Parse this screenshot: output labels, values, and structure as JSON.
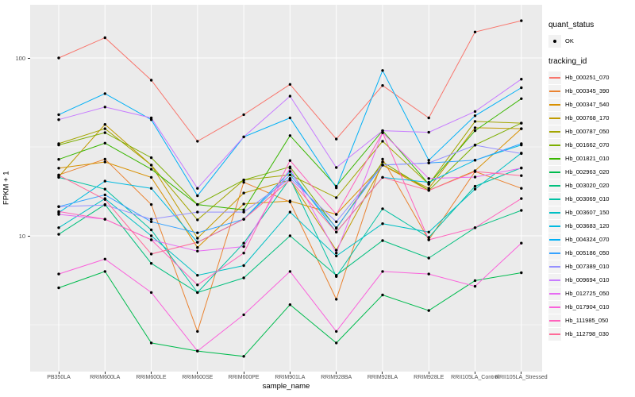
{
  "chart_data": {
    "type": "line",
    "xlabel": "sample_name",
    "ylabel": "FPKM + 1",
    "y_scale": "log10",
    "grid": "on",
    "legend_position": "right",
    "panel_bg": "#EBEBEB",
    "gridline_color": "#FFFFFF",
    "point_color": "#000000",
    "y_ticks": [
      {
        "value": 100,
        "label": "100"
      },
      {
        "value": 10,
        "label": "10"
      }
    ],
    "y_minor_gridlines": [
      3.162,
      31.62,
      316.2
    ],
    "ylim_log": [
      2.05,
      200
    ],
    "categories": [
      "PB350LA",
      "RRIM600LA",
      "RRIM600LE",
      "RRIM600SE",
      "RRIM600PE",
      "RRIM901LA",
      "RRIM928BA",
      "RRIM928LA",
      "RRIM928LE",
      "RRII105LA_Control",
      "RRII105LA_Stressed"
    ],
    "legend": {
      "quant_title": "quant_status",
      "ok_label": "OK",
      "tracking_title": "tracking_id"
    },
    "series": [
      {
        "name": "Hb_000251_070",
        "color": "#F8766D",
        "values": [
          100,
          130,
          75,
          34,
          48,
          71,
          35,
          70,
          46,
          140,
          162
        ]
      },
      {
        "name": "Hb_000345_390",
        "color": "#EA8331",
        "values": [
          22,
          27,
          15,
          2.9,
          20,
          15.5,
          4.4,
          27,
          9.5,
          23,
          18.5
        ]
      },
      {
        "name": "Hb_000347_540",
        "color": "#D89000",
        "values": [
          24,
          26,
          21.3,
          8.6,
          15.1,
          15.7,
          13.2,
          25,
          18,
          23.2,
          40
        ]
      },
      {
        "name": "Hb_000768_170",
        "color": "#C09B00",
        "values": [
          21.5,
          42.3,
          25,
          9.7,
          17.4,
          20.6,
          8.3,
          25,
          18.5,
          40.5,
          40
        ]
      },
      {
        "name": "Hb_000787_050",
        "color": "#A3A500",
        "values": [
          33,
          40,
          25,
          12.3,
          20.6,
          22,
          16.4,
          34,
          19.5,
          44,
          43
        ]
      },
      {
        "name": "Hb_001662_070",
        "color": "#7CAE00",
        "values": [
          32.4,
          38,
          27.5,
          15,
          20.6,
          24.4,
          11,
          26,
          18,
          32.4,
          43
        ]
      },
      {
        "name": "Hb_001821_010",
        "color": "#39B600",
        "values": [
          26.9,
          33.2,
          23.7,
          15,
          14,
          36.6,
          19,
          39,
          19.5,
          39,
          59
        ]
      },
      {
        "name": "Hb_002963_020",
        "color": "#00BB4E",
        "values": [
          5.1,
          6.3,
          2.5,
          2.25,
          2.1,
          4.1,
          2.5,
          4.65,
          3.8,
          5.6,
          6.2
        ]
      },
      {
        "name": "Hb_003020_020",
        "color": "#00BF7D",
        "values": [
          10.2,
          15,
          7,
          4.8,
          5.8,
          10,
          6,
          9.4,
          7.5,
          11.1,
          13.9
        ]
      },
      {
        "name": "Hb_003069_010",
        "color": "#00C1A3",
        "values": [
          21.3,
          18.3,
          10.8,
          4.8,
          9.1,
          21,
          5.9,
          14.2,
          9.8,
          19,
          24.1
        ]
      },
      {
        "name": "Hb_003607_150",
        "color": "#00BFC4",
        "values": [
          11.1,
          16.2,
          10,
          6,
          6.8,
          13.6,
          7.7,
          11.7,
          10.5,
          18.3,
          29.2
        ]
      },
      {
        "name": "Hb_003683_120",
        "color": "#00BAE0",
        "values": [
          13.5,
          20.3,
          18.5,
          9.2,
          12.4,
          23,
          10.5,
          21.3,
          20,
          26.6,
          32.4
        ]
      },
      {
        "name": "Hb_004324_070",
        "color": "#00B0F6",
        "values": [
          48,
          63,
          45,
          16.8,
          36,
          46,
          18.6,
          85,
          26.6,
          47.3,
          68
        ]
      },
      {
        "name": "Hb_005186_050",
        "color": "#35A2FF",
        "values": [
          14.6,
          17,
          12,
          10.4,
          12.4,
          22,
          11.1,
          25,
          25.7,
          26.6,
          33
        ]
      },
      {
        "name": "Hb_007389_010",
        "color": "#9590FF",
        "values": [
          14.6,
          14.9,
          12.4,
          13.6,
          13.6,
          21,
          12,
          25,
          25.7,
          32.3,
          29
        ]
      },
      {
        "name": "Hb_009694_010",
        "color": "#C77CFF",
        "values": [
          45,
          53,
          46,
          18.5,
          36,
          61,
          24.2,
          39,
          38.2,
          50,
          76
        ]
      },
      {
        "name": "Hb_012725_050",
        "color": "#E76BF3",
        "values": [
          13.2,
          12.4,
          9.5,
          8.2,
          8.7,
          24,
          8,
          38,
          21,
          21.4,
          24
        ]
      },
      {
        "name": "Hb_017904_010",
        "color": "#FA62DB",
        "values": [
          6.1,
          7.4,
          4.8,
          2.25,
          3.6,
          6.3,
          2.9,
          6.3,
          6.1,
          5.2,
          9.1
        ]
      },
      {
        "name": "Hb_111985_050",
        "color": "#FF62BC",
        "values": [
          13.7,
          12.4,
          9.5,
          5.3,
          8,
          26.5,
          13.2,
          38,
          9.5,
          11.1,
          16.2
        ]
      },
      {
        "name": "Hb_112798_030",
        "color": "#FF6A98",
        "values": [
          21.9,
          16,
          7.9,
          9.2,
          12.4,
          20.6,
          10.5,
          21.3,
          18,
          23,
          21.8
        ]
      }
    ]
  }
}
